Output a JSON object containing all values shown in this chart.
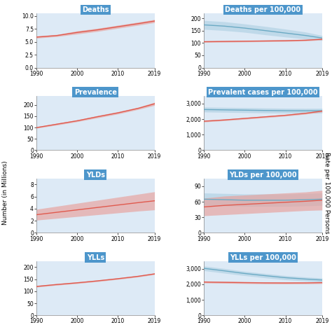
{
  "years": [
    1990,
    1995,
    2000,
    2005,
    2010,
    2015,
    2019
  ],
  "plots": [
    {
      "title": "Deaths",
      "red_line": [
        5.9,
        6.2,
        6.8,
        7.3,
        7.9,
        8.5,
        9.0
      ],
      "red_band_lo": [
        5.7,
        6.0,
        6.5,
        7.0,
        7.6,
        8.2,
        8.7
      ],
      "red_band_hi": [
        6.1,
        6.4,
        7.1,
        7.6,
        8.2,
        8.8,
        9.3
      ],
      "blue_line": null,
      "blue_band_lo": null,
      "blue_band_hi": null,
      "ylim": [
        0,
        10.5
      ],
      "yticks": [
        0.0,
        2.5,
        5.0,
        7.5,
        10.0
      ],
      "yticklabels": [
        "0.0",
        "2.5",
        "5.0",
        "7.5",
        "10.0"
      ],
      "row": 0,
      "col": 0
    },
    {
      "title": "Deaths per 100,000",
      "red_line": [
        105,
        106,
        107,
        108,
        109,
        111,
        115
      ],
      "red_band_lo": [
        102,
        103,
        104,
        105,
        106,
        108,
        112
      ],
      "red_band_hi": [
        108,
        109,
        110,
        111,
        112,
        114,
        118
      ],
      "blue_line": [
        173,
        168,
        160,
        150,
        140,
        130,
        120
      ],
      "blue_band_lo": [
        155,
        150,
        143,
        133,
        124,
        116,
        110
      ],
      "blue_band_hi": [
        191,
        186,
        177,
        167,
        156,
        144,
        130
      ],
      "ylim": [
        0,
        220
      ],
      "yticks": [
        0,
        50,
        100,
        150,
        200
      ],
      "yticklabels": [
        "0",
        "50",
        "100",
        "150",
        "200"
      ],
      "row": 0,
      "col": 1
    },
    {
      "title": "Prevalence",
      "red_line": [
        100,
        115,
        130,
        148,
        165,
        185,
        205
      ],
      "red_band_lo": [
        97,
        111,
        126,
        143,
        160,
        180,
        198
      ],
      "red_band_hi": [
        103,
        119,
        134,
        153,
        170,
        190,
        212
      ],
      "blue_line": null,
      "blue_band_lo": null,
      "blue_band_hi": null,
      "ylim": [
        0,
        240
      ],
      "yticks": [
        0,
        50,
        100,
        150,
        200
      ],
      "yticklabels": [
        "0",
        "50",
        "100",
        "150",
        "200"
      ],
      "row": 1,
      "col": 0
    },
    {
      "title": "Prevalent cases per 100,000",
      "red_line": [
        1870,
        1950,
        2050,
        2150,
        2250,
        2380,
        2520
      ],
      "red_band_lo": [
        1820,
        1900,
        1995,
        2095,
        2195,
        2325,
        2465
      ],
      "red_band_hi": [
        1920,
        2000,
        2105,
        2205,
        2305,
        2435,
        2575
      ],
      "blue_line": [
        2620,
        2600,
        2580,
        2560,
        2545,
        2540,
        2545
      ],
      "blue_band_lo": [
        2460,
        2440,
        2420,
        2400,
        2390,
        2385,
        2390
      ],
      "blue_band_hi": [
        2780,
        2760,
        2740,
        2720,
        2700,
        2695,
        2700
      ],
      "ylim": [
        0,
        3500
      ],
      "yticks": [
        0,
        1000,
        2000,
        3000
      ],
      "yticklabels": [
        "0",
        "1,000",
        "2,000",
        "3,000"
      ],
      "row": 1,
      "col": 1
    },
    {
      "title": "YLDs",
      "red_line": [
        3.0,
        3.4,
        3.8,
        4.2,
        4.6,
        5.0,
        5.3
      ],
      "red_band_lo": [
        2.1,
        2.4,
        2.7,
        3.0,
        3.3,
        3.6,
        3.8
      ],
      "red_band_hi": [
        3.9,
        4.4,
        4.9,
        5.4,
        5.9,
        6.4,
        6.8
      ],
      "blue_line": null,
      "blue_band_lo": null,
      "blue_band_hi": null,
      "ylim": [
        0,
        9
      ],
      "yticks": [
        0,
        2,
        4,
        6,
        8
      ],
      "yticklabels": [
        "0",
        "2",
        "4",
        "6",
        "8"
      ],
      "row": 2,
      "col": 0
    },
    {
      "title": "YLDs per 100,000",
      "red_line": [
        50,
        53,
        55,
        57,
        59,
        61,
        63
      ],
      "red_band_lo": [
        33,
        35,
        37,
        39,
        41,
        43,
        44
      ],
      "red_band_hi": [
        67,
        71,
        73,
        75,
        77,
        79,
        82
      ],
      "blue_line": [
        65,
        64,
        63,
        63,
        63,
        64,
        65
      ],
      "blue_band_lo": [
        53,
        52,
        51,
        51,
        51,
        52,
        53
      ],
      "blue_band_hi": [
        77,
        76,
        75,
        75,
        75,
        76,
        77
      ],
      "ylim": [
        0,
        105
      ],
      "yticks": [
        0,
        30,
        60,
        90
      ],
      "yticklabels": [
        "0",
        "30",
        "60",
        "90"
      ],
      "row": 2,
      "col": 1
    },
    {
      "title": "YLLs",
      "red_line": [
        120,
        128,
        135,
        143,
        152,
        162,
        172
      ],
      "red_band_lo": [
        117,
        125,
        132,
        140,
        149,
        159,
        169
      ],
      "red_band_hi": [
        123,
        131,
        138,
        146,
        155,
        165,
        175
      ],
      "blue_line": null,
      "blue_band_lo": null,
      "blue_band_hi": null,
      "ylim": [
        0,
        225
      ],
      "yticks": [
        0,
        50,
        100,
        150,
        200
      ],
      "yticklabels": [
        "0",
        "50",
        "100",
        "150",
        "200"
      ],
      "row": 3,
      "col": 0
    },
    {
      "title": "YLLs per 100,000",
      "red_line": [
        2150,
        2130,
        2110,
        2095,
        2090,
        2095,
        2110
      ],
      "red_band_lo": [
        2090,
        2070,
        2050,
        2035,
        2030,
        2035,
        2050
      ],
      "red_band_hi": [
        2210,
        2190,
        2170,
        2155,
        2150,
        2155,
        2170
      ],
      "blue_line": [
        3030,
        2870,
        2700,
        2560,
        2430,
        2340,
        2280
      ],
      "blue_band_lo": [
        2880,
        2720,
        2560,
        2420,
        2295,
        2210,
        2150
      ],
      "blue_band_hi": [
        3180,
        3020,
        2840,
        2700,
        2565,
        2470,
        2410
      ],
      "ylim": [
        0,
        3500
      ],
      "yticks": [
        0,
        1000,
        2000,
        3000
      ],
      "yticklabels": [
        "0",
        "1,000",
        "2,000",
        "3,000"
      ],
      "row": 3,
      "col": 1
    }
  ],
  "ylabel_left": "Number (in Millions)",
  "ylabel_right": "Rate per 100,000 Persons",
  "bg_color": "#ddeaf6",
  "title_bg": "#4d96cb",
  "title_color": "white",
  "red_color": "#e05a4e",
  "red_band_color": "#e8a09a",
  "blue_color": "#6baac4",
  "blue_band_color": "#a8cce0",
  "fig_bg": "white",
  "tick_fontsize": 5.5,
  "title_fontsize": 7,
  "axis_label_fontsize": 6.5
}
